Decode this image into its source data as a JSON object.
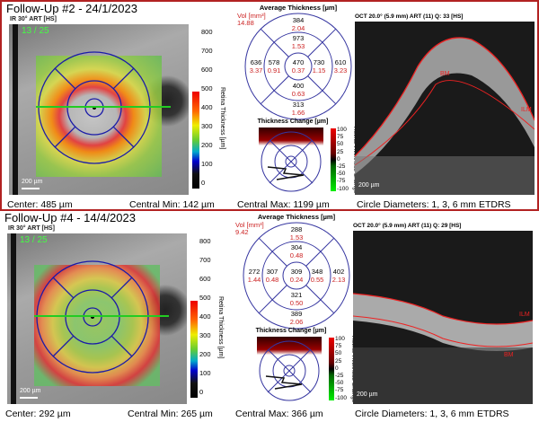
{
  "panels": [
    {
      "title": "Follow-Up #2 - 24/1/2023",
      "ir_label": "IR 30° ART [HS]",
      "slice_counter": "13 / 25",
      "scale_label": "200 µm",
      "thickness_colorbar": {
        "ticks": [
          "800",
          "700",
          "600",
          "500",
          "400",
          "300",
          "200",
          "100",
          "0"
        ],
        "title": "Retina Thickness [µm]"
      },
      "footer": {
        "center": "Center: 485 µm",
        "central_min": "Central Min: 142 µm",
        "central_max": "Central Max: 1199 µm",
        "circles": "Circle Diameters:  1, 3, 6 mm ETDRS"
      },
      "grid": {
        "title": "Average Thickness [µm]",
        "vol_label": "Vol [mm³]",
        "vol_total": "14.88",
        "center": [
          "470",
          "0.37"
        ],
        "inner_sup": [
          "973",
          "1.53"
        ],
        "inner_inf": [
          "400",
          "0.63"
        ],
        "inner_temp": [
          "578",
          "0.91"
        ],
        "inner_nas": [
          "730",
          "1.15"
        ],
        "outer_sup": [
          "384",
          "2.04"
        ],
        "outer_inf": [
          "313",
          "1.66"
        ],
        "outer_temp": [
          "636",
          "3.37"
        ],
        "outer_nas": [
          "610",
          "3.23"
        ]
      },
      "change": {
        "title": "Thickness Change [µm]",
        "ticks": [
          "100",
          "75",
          "50",
          "25",
          "0",
          "-25",
          "-50",
          "-75",
          "-100"
        ],
        "cb_title": "Retina Thickness Change"
      },
      "oct": {
        "label": "OCT 20.0° (5.9 mm) ART (11) Q: 33 [HS]",
        "bm": "BM",
        "ilm": "ILM",
        "scale": "200 µm"
      }
    },
    {
      "title": "Follow-Up #4 - 14/4/2023",
      "ir_label": "IR 30° ART [HS]",
      "slice_counter": "13 / 25",
      "scale_label": "200 µm",
      "thickness_colorbar": {
        "ticks": [
          "800",
          "700",
          "600",
          "500",
          "400",
          "300",
          "200",
          "100",
          "0"
        ],
        "title": "Retina Thickness [µm]"
      },
      "footer": {
        "center": "Center: 292 µm",
        "central_min": "Central Min: 265 µm",
        "central_max": "Central Max: 366 µm",
        "circles": "Circle Diameters:  1, 3, 6 mm ETDRS"
      },
      "grid": {
        "title": "Average Thickness [µm]",
        "vol_label": "Vol [mm³]",
        "vol_total": "9.42",
        "center": [
          "309",
          "0.24"
        ],
        "inner_sup": [
          "304",
          "0.48"
        ],
        "inner_inf": [
          "321",
          "0.50"
        ],
        "inner_temp": [
          "307",
          "0.48"
        ],
        "inner_nas": [
          "348",
          "0.55"
        ],
        "outer_sup": [
          "288",
          "1.53"
        ],
        "outer_inf": [
          "389",
          "2.06"
        ],
        "outer_temp": [
          "272",
          "1.44"
        ],
        "outer_nas": [
          "402",
          "2.13"
        ]
      },
      "change": {
        "title": "Thickness Change [µm]",
        "ticks": [
          "100",
          "75",
          "50",
          "25",
          "0",
          "-25",
          "-50",
          "-75",
          "-100"
        ],
        "cb_title": "Retina Thickness Change"
      },
      "oct": {
        "label": "OCT 20.0° (5.9 mm) ART (11) Q: 29 [HS]",
        "bm": "BM",
        "ilm": "ILM",
        "scale": "200 µm"
      }
    }
  ]
}
